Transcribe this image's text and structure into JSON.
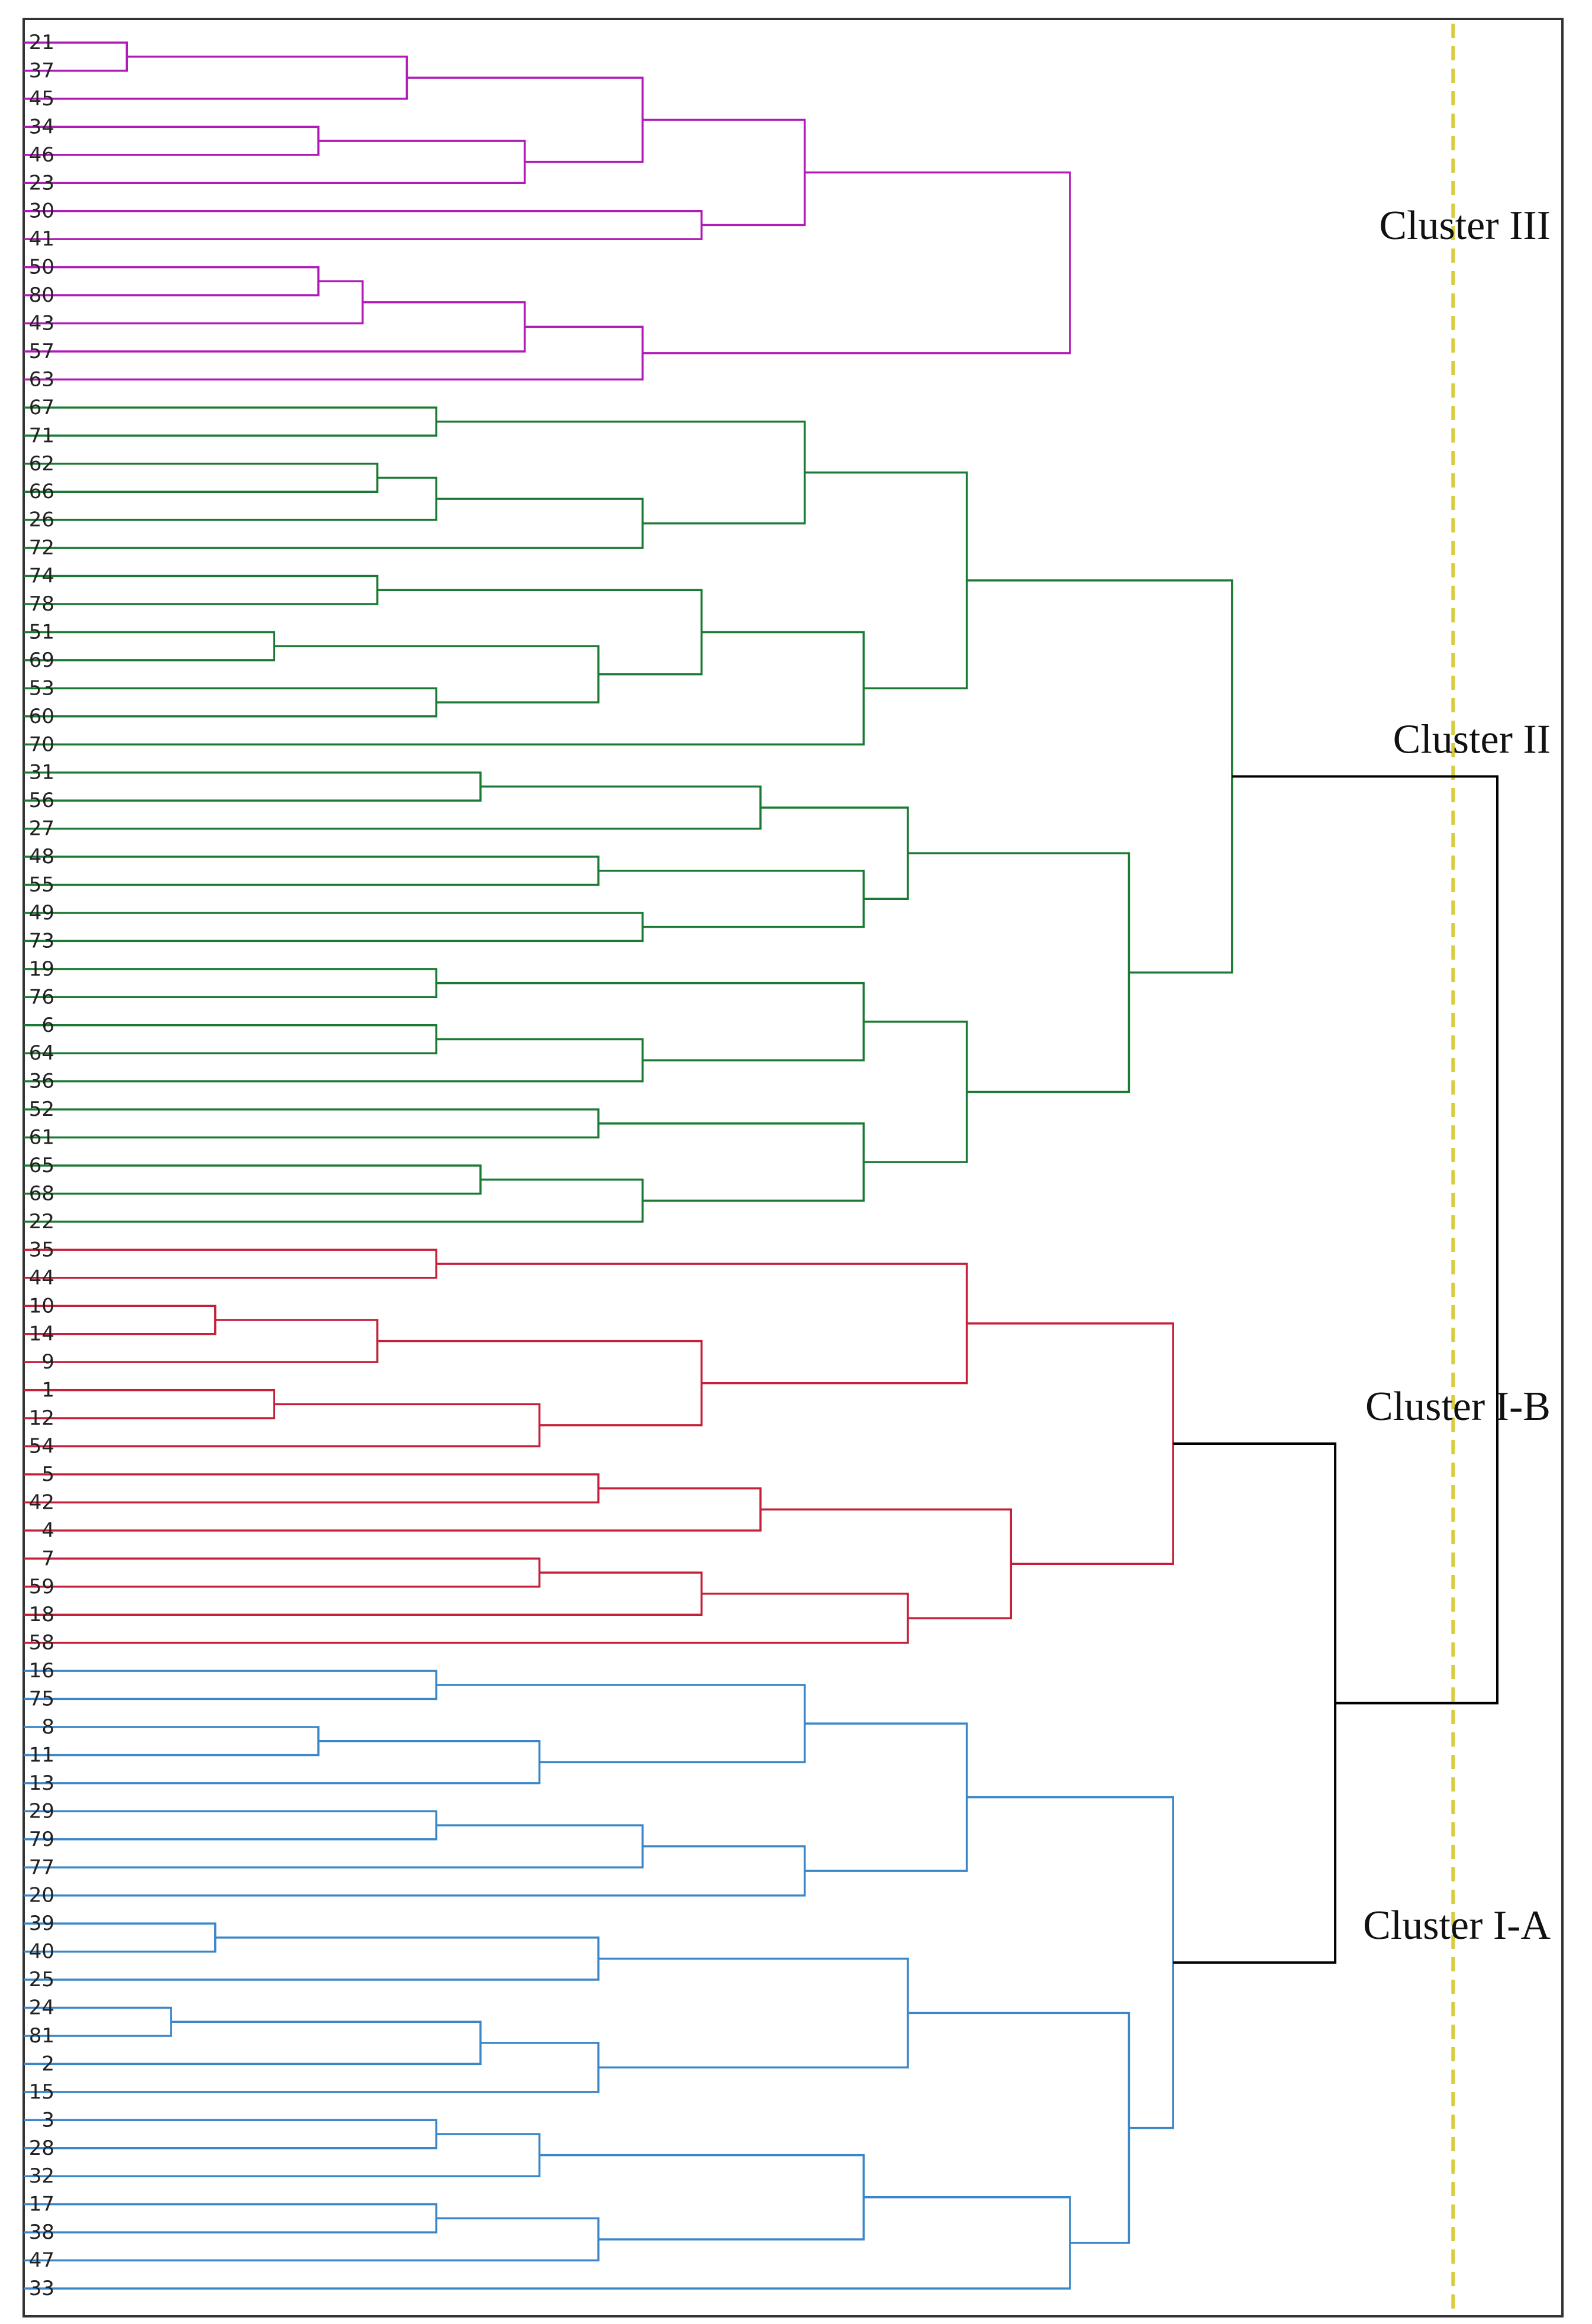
{
  "chart_data": {
    "type": "dendrogram",
    "title": "",
    "xlabel": "",
    "ylabel": "",
    "leaf_order": [
      "21",
      "37",
      "45",
      "34",
      "46",
      "23",
      "30",
      "41",
      "50",
      "80",
      "43",
      "57",
      "63",
      "67",
      "71",
      "62",
      "66",
      "26",
      "72",
      "74",
      "78",
      "51",
      "69",
      "53",
      "60",
      "70",
      "31",
      "56",
      "27",
      "48",
      "55",
      "49",
      "73",
      "19",
      "76",
      "6",
      "64",
      "36",
      "52",
      "61",
      "65",
      "68",
      "22",
      "35",
      "44",
      "10",
      "14",
      "9",
      "1",
      "12",
      "54",
      "5",
      "42",
      "4",
      "7",
      "59",
      "18",
      "58",
      "16",
      "75",
      "8",
      "11",
      "13",
      "29",
      "79",
      "77",
      "20",
      "39",
      "40",
      "25",
      "24",
      "81",
      "2",
      "15",
      "3",
      "28",
      "32",
      "17",
      "38",
      "47",
      "33"
    ],
    "merges": [
      {
        "id": "a1",
        "c": [
          "21",
          "37"
        ],
        "h": 7
      },
      {
        "id": "a2",
        "c": [
          "a1",
          "45"
        ],
        "h": 26
      },
      {
        "id": "a3",
        "c": [
          "34",
          "46"
        ],
        "h": 20
      },
      {
        "id": "a4",
        "c": [
          "a3",
          "23"
        ],
        "h": 34
      },
      {
        "id": "a5",
        "c": [
          "a2",
          "a4"
        ],
        "h": 42
      },
      {
        "id": "a6",
        "c": [
          "30",
          "41"
        ],
        "h": 46
      },
      {
        "id": "a7",
        "c": [
          "a5",
          "a6"
        ],
        "h": 53
      },
      {
        "id": "a8",
        "c": [
          "50",
          "80"
        ],
        "h": 20
      },
      {
        "id": "a9",
        "c": [
          "a8",
          "43"
        ],
        "h": 23
      },
      {
        "id": "a10",
        "c": [
          "a9",
          "57"
        ],
        "h": 34
      },
      {
        "id": "a11",
        "c": [
          "a10",
          "63"
        ],
        "h": 42
      },
      {
        "id": "a12",
        "c": [
          "a7",
          "a11"
        ],
        "h": 71
      },
      {
        "id": "g1",
        "c": [
          "67",
          "71"
        ],
        "h": 28
      },
      {
        "id": "g2",
        "c": [
          "62",
          "66"
        ],
        "h": 24
      },
      {
        "id": "g3",
        "c": [
          "g2",
          "26"
        ],
        "h": 28
      },
      {
        "id": "g4",
        "c": [
          "g3",
          "72"
        ],
        "h": 42
      },
      {
        "id": "g5",
        "c": [
          "g1",
          "g4"
        ],
        "h": 53
      },
      {
        "id": "g6",
        "c": [
          "74",
          "78"
        ],
        "h": 24
      },
      {
        "id": "g7",
        "c": [
          "51",
          "69"
        ],
        "h": 17
      },
      {
        "id": "g8",
        "c": [
          "53",
          "60"
        ],
        "h": 28
      },
      {
        "id": "g9",
        "c": [
          "g7",
          "g8"
        ],
        "h": 39
      },
      {
        "id": "g10",
        "c": [
          "g6",
          "g9"
        ],
        "h": 46
      },
      {
        "id": "g11",
        "c": [
          "g10",
          "70"
        ],
        "h": 57
      },
      {
        "id": "g12",
        "c": [
          "g5",
          "g11"
        ],
        "h": 64
      },
      {
        "id": "g13",
        "c": [
          "31",
          "56"
        ],
        "h": 31
      },
      {
        "id": "g14",
        "c": [
          "g13",
          "27"
        ],
        "h": 50
      },
      {
        "id": "g15",
        "c": [
          "48",
          "55"
        ],
        "h": 39
      },
      {
        "id": "g16",
        "c": [
          "49",
          "73"
        ],
        "h": 42
      },
      {
        "id": "g17",
        "c": [
          "g15",
          "g16"
        ],
        "h": 57
      },
      {
        "id": "g18",
        "c": [
          "g14",
          "g17"
        ],
        "h": 60
      },
      {
        "id": "g19",
        "c": [
          "19",
          "76"
        ],
        "h": 28
      },
      {
        "id": "g20",
        "c": [
          "6",
          "64"
        ],
        "h": 28
      },
      {
        "id": "g21",
        "c": [
          "g20",
          "36"
        ],
        "h": 42
      },
      {
        "id": "g22",
        "c": [
          "g19",
          "g21"
        ],
        "h": 57
      },
      {
        "id": "g23",
        "c": [
          "52",
          "61"
        ],
        "h": 39
      },
      {
        "id": "g24",
        "c": [
          "65",
          "68"
        ],
        "h": 31
      },
      {
        "id": "g25",
        "c": [
          "g24",
          "22"
        ],
        "h": 42
      },
      {
        "id": "g26",
        "c": [
          "g23",
          "g25"
        ],
        "h": 57
      },
      {
        "id": "g27",
        "c": [
          "g22",
          "g26"
        ],
        "h": 64
      },
      {
        "id": "g28",
        "c": [
          "g18",
          "g27"
        ],
        "h": 75
      },
      {
        "id": "g29",
        "c": [
          "g12",
          "g28"
        ],
        "h": 82
      },
      {
        "id": "r1",
        "c": [
          "35",
          "44"
        ],
        "h": 28
      },
      {
        "id": "r2",
        "c": [
          "10",
          "14"
        ],
        "h": 13
      },
      {
        "id": "r3",
        "c": [
          "r2",
          "9"
        ],
        "h": 24
      },
      {
        "id": "r4",
        "c": [
          "1",
          "12"
        ],
        "h": 17
      },
      {
        "id": "r5",
        "c": [
          "r4",
          "54"
        ],
        "h": 35
      },
      {
        "id": "r6",
        "c": [
          "r3",
          "r5"
        ],
        "h": 46
      },
      {
        "id": "r7",
        "c": [
          "r1",
          "r6"
        ],
        "h": 64
      },
      {
        "id": "r8",
        "c": [
          "5",
          "42"
        ],
        "h": 39
      },
      {
        "id": "r9",
        "c": [
          "r8",
          "4"
        ],
        "h": 50
      },
      {
        "id": "r10",
        "c": [
          "7",
          "59"
        ],
        "h": 35
      },
      {
        "id": "r11",
        "c": [
          "r10",
          "18"
        ],
        "h": 46
      },
      {
        "id": "r12",
        "c": [
          "r11",
          "58"
        ],
        "h": 60
      },
      {
        "id": "r13",
        "c": [
          "r9",
          "r12"
        ],
        "h": 67
      },
      {
        "id": "r14",
        "c": [
          "r7",
          "r13"
        ],
        "h": 78
      },
      {
        "id": "b1",
        "c": [
          "16",
          "75"
        ],
        "h": 28
      },
      {
        "id": "b2",
        "c": [
          "8",
          "11"
        ],
        "h": 20
      },
      {
        "id": "b3",
        "c": [
          "b2",
          "13"
        ],
        "h": 35
      },
      {
        "id": "b4",
        "c": [
          "b1",
          "b3"
        ],
        "h": 53
      },
      {
        "id": "b5",
        "c": [
          "29",
          "79"
        ],
        "h": 28
      },
      {
        "id": "b6",
        "c": [
          "b5",
          "77"
        ],
        "h": 42
      },
      {
        "id": "b7",
        "c": [
          "b6",
          "20"
        ],
        "h": 53
      },
      {
        "id": "b8",
        "c": [
          "b4",
          "b7"
        ],
        "h": 64
      },
      {
        "id": "b9",
        "c": [
          "39",
          "40"
        ],
        "h": 13
      },
      {
        "id": "b10",
        "c": [
          "b9",
          "25"
        ],
        "h": 39
      },
      {
        "id": "b11",
        "c": [
          "24",
          "81"
        ],
        "h": 10
      },
      {
        "id": "b12",
        "c": [
          "b11",
          "2"
        ],
        "h": 31
      },
      {
        "id": "b13",
        "c": [
          "b12",
          "15"
        ],
        "h": 39
      },
      {
        "id": "b14",
        "c": [
          "b10",
          "b13"
        ],
        "h": 60
      },
      {
        "id": "b15",
        "c": [
          "3",
          "28"
        ],
        "h": 28
      },
      {
        "id": "b16",
        "c": [
          "b15",
          "32"
        ],
        "h": 35
      },
      {
        "id": "b17",
        "c": [
          "17",
          "38"
        ],
        "h": 28
      },
      {
        "id": "b18",
        "c": [
          "b17",
          "47"
        ],
        "h": 39
      },
      {
        "id": "b19",
        "c": [
          "b16",
          "b18"
        ],
        "h": 57
      },
      {
        "id": "b20",
        "c": [
          "b19",
          "33"
        ],
        "h": 71
      },
      {
        "id": "b21",
        "c": [
          "b14",
          "b20"
        ],
        "h": 75
      },
      {
        "id": "b22",
        "c": [
          "b8",
          "b21"
        ],
        "h": 78
      },
      {
        "id": "k1",
        "c": [
          "r14",
          "b22"
        ],
        "h": 89
      },
      {
        "id": "k2",
        "c": [
          "g29",
          "k1"
        ],
        "h": 100
      }
    ],
    "x_range": [
      0,
      100
    ],
    "cutoff_height": 97,
    "cluster_labels": [
      {
        "text": "Cluster III",
        "node": "a12"
      },
      {
        "text": "Cluster II",
        "node": "g29"
      },
      {
        "text": "Cluster I-B",
        "node": "r14"
      },
      {
        "text": "Cluster I-A",
        "node": "b22"
      }
    ],
    "colors": {
      "cluster_III": "#b01ab8",
      "cluster_II": "#1a7a33",
      "cluster_I_B": "#c4203a",
      "cluster_I_A": "#3a86c8",
      "top_links": "#000000",
      "cutoff_line": "#d8cc3c",
      "frame": "#333333"
    }
  }
}
